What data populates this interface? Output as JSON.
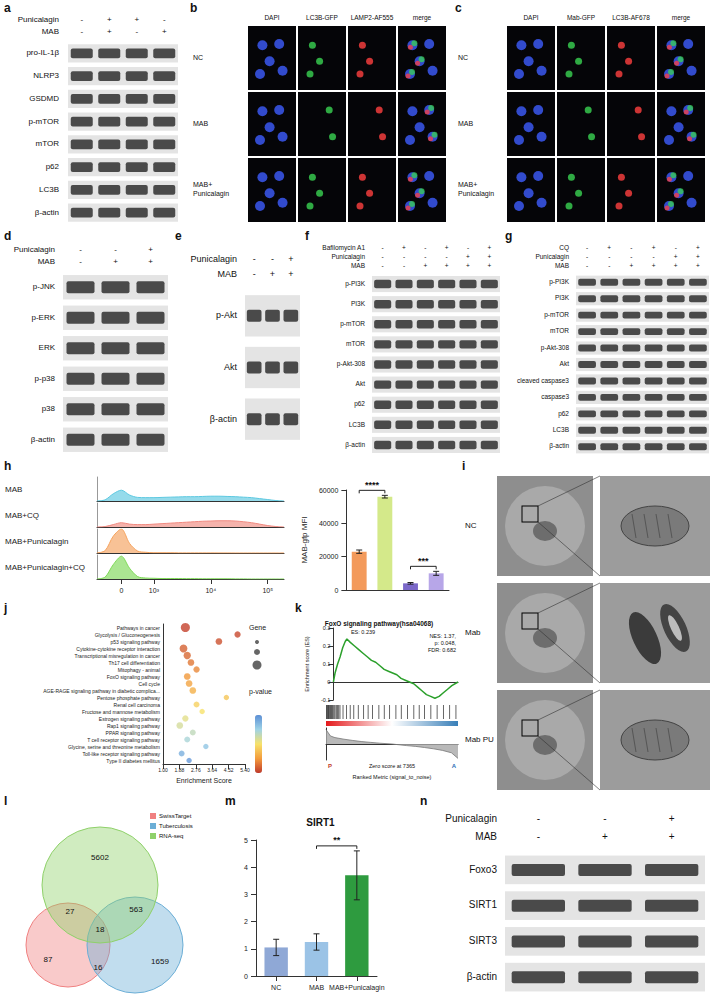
{
  "blots": {
    "a": {
      "treatments": [
        {
          "name": "Punicalagin",
          "signs": [
            "-",
            "+",
            "+",
            "-"
          ]
        },
        {
          "name": "MAB",
          "signs": [
            "-",
            "+",
            "-",
            "+"
          ]
        }
      ],
      "bands": [
        "pro-IL-1β",
        "NLRP3",
        "GSDMD",
        "p-mTOR",
        "mTOR",
        "p62",
        "LC3B",
        "β-actin"
      ]
    },
    "d": {
      "treatments": [
        {
          "name": "Punicalagin",
          "signs": [
            "-",
            "-",
            "+"
          ]
        },
        {
          "name": "MAB",
          "signs": [
            "-",
            "+",
            "+"
          ]
        }
      ],
      "bands": [
        "p-JNK",
        "p-ERK",
        "ERK",
        "p-p38",
        "p38",
        "β-actin"
      ]
    },
    "e": {
      "treatments": [
        {
          "name": "Punicalagin",
          "signs": [
            "-",
            "-",
            "+"
          ]
        },
        {
          "name": "MAB",
          "signs": [
            "-",
            "+",
            "+"
          ]
        }
      ],
      "bands": [
        "p-Akt",
        "Akt",
        "β-actin"
      ]
    },
    "f": {
      "treatments": [
        {
          "name": "Bafilomycin A1",
          "signs": [
            "-",
            "+",
            "-",
            "+",
            "-",
            "+"
          ]
        },
        {
          "name": "Punicalagin",
          "signs": [
            "-",
            "-",
            "-",
            "-",
            "+",
            "+"
          ]
        },
        {
          "name": "MAB",
          "signs": [
            "-",
            "-",
            "+",
            "+",
            "+",
            "+"
          ]
        }
      ],
      "bands": [
        "p-PI3K",
        "PI3K",
        "p-mTOR",
        "mTOR",
        "p-Akt-308",
        "Akt",
        "p62",
        "LC3B",
        "β-actin"
      ]
    },
    "g": {
      "treatments": [
        {
          "name": "CQ",
          "signs": [
            "-",
            "+",
            "-",
            "+",
            "-",
            "+"
          ]
        },
        {
          "name": "Punicalagin",
          "signs": [
            "-",
            "-",
            "-",
            "-",
            "+",
            "+"
          ]
        },
        {
          "name": "MAB",
          "signs": [
            "-",
            "-",
            "+",
            "+",
            "+",
            "+"
          ]
        }
      ],
      "bands": [
        "p-PI3K",
        "PI3K",
        "p-mTOR",
        "mTOR",
        "p-Akt-308",
        "Akt",
        "cleaved caspase3",
        "caspase3",
        "p62",
        "LC3B",
        "β-actin"
      ]
    },
    "n": {
      "treatments": [
        {
          "name": "Punicalagin",
          "signs": [
            "-",
            "-",
            "+"
          ]
        },
        {
          "name": "MAB",
          "signs": [
            "-",
            "+",
            "+"
          ]
        }
      ],
      "bands": [
        "Foxo3",
        "SIRT1",
        "SIRT3",
        "β-actin"
      ]
    }
  },
  "micrographs": {
    "b": {
      "columns": [
        "DAPI",
        "LC3B-GFP",
        "LAMP2-AF555",
        "merge"
      ],
      "rows": [
        "NC",
        "MAB",
        "MAB+Punicalagin"
      ]
    },
    "c": {
      "columns": [
        "DAPI",
        "Mab-GFP",
        "LC3B-AF678",
        "merge"
      ],
      "rows": [
        "NC",
        "MAB",
        "MAB+Punicalagin"
      ]
    },
    "i": {
      "rows": [
        "NC",
        "Mab",
        "Mab PU"
      ]
    }
  },
  "venn": {
    "l": {
      "sets": [
        {
          "name": "SwissTarget",
          "color": "#f08080"
        },
        {
          "name": "Tuberculosis",
          "color": "#6baed6"
        },
        {
          "name": "RNA-seq",
          "color": "#8fd16a"
        }
      ],
      "regions": [
        {
          "sets": [
            "SwissTarget"
          ],
          "value": 87
        },
        {
          "sets": [
            "Tuberculosis"
          ],
          "value": 1659
        },
        {
          "sets": [
            "RNA-seq"
          ],
          "value": 5602
        },
        {
          "sets": [
            "SwissTarget",
            "RNA-seq"
          ],
          "value": 27
        },
        {
          "sets": [
            "RNA-seq",
            "Tuberculosis"
          ],
          "value": 563
        },
        {
          "sets": [
            "SwissTarget",
            "Tuberculosis"
          ],
          "value": 16
        },
        {
          "sets": [
            "SwissTarget",
            "RNA-seq",
            "Tuberculosis"
          ],
          "value": 18
        }
      ]
    }
  },
  "chart_data": [
    {
      "panel": "h",
      "type": "area",
      "categories": [
        null,
        null,
        null,
        "0",
        null,
        null,
        null,
        "10³",
        null,
        null,
        null,
        null,
        null,
        null,
        "10⁴",
        null,
        null,
        null,
        null,
        null,
        null,
        "10⁵",
        null,
        null
      ],
      "series": [
        {
          "name": "MAB",
          "color": "#5cc8e0",
          "values": [
            0,
            5,
            30,
            45,
            25,
            15,
            14,
            14,
            15,
            16,
            17,
            18,
            18,
            19,
            20,
            20,
            19,
            18,
            16,
            14,
            10,
            6,
            2,
            0
          ]
        },
        {
          "name": "MAB+CQ",
          "color": "#f08a80",
          "values": [
            0,
            2,
            10,
            18,
            12,
            10,
            10,
            12,
            14,
            16,
            18,
            20,
            22,
            24,
            25,
            26,
            26,
            25,
            22,
            18,
            12,
            6,
            2,
            0
          ]
        },
        {
          "name": "MAB+Punicalagin",
          "color": "#f5a25d",
          "values": [
            0,
            10,
            70,
            100,
            40,
            8,
            3,
            1,
            1,
            1,
            0.5,
            0.5,
            0.5,
            0.5,
            0.5,
            0.3,
            0.2,
            0,
            0,
            0,
            0,
            0,
            0,
            0
          ]
        },
        {
          "name": "MAB+Punicalagin+CQ",
          "color": "#7ed957",
          "values": [
            0,
            8,
            60,
            95,
            45,
            10,
            4,
            3,
            2,
            2,
            2,
            1.5,
            1.5,
            1,
            1,
            1,
            1,
            0.5,
            0.5,
            0,
            0,
            0,
            0,
            0
          ]
        }
      ],
      "ylim": [
        0,
        100
      ],
      "tick_labels": "x"
    },
    {
      "panel": "h",
      "type": "bar",
      "y_label": "MAB-gfp MFI",
      "values": [
        23000,
        56000,
        4000,
        10000
      ],
      "errors": [
        1000,
        800,
        500,
        1200
      ],
      "colors": [
        "#f39a5b",
        "#d4e98a",
        "#7b68c9",
        "#b7a6e8"
      ],
      "ylim": [
        0,
        60000
      ],
      "yticks": [
        0,
        20000,
        40000,
        60000
      ],
      "tick_labels": "y",
      "annotations": [
        {
          "text": "****",
          "from": 0,
          "to": 1
        },
        {
          "text": "***",
          "from": 2,
          "to": 3
        }
      ]
    },
    {
      "panel": "j",
      "type": "scatter",
      "x_label": "Enrichment Score",
      "categories": [
        "Pathways in cancer",
        "Glycolysis / Gluconeogenesis",
        "p53 signaling pathway",
        "Cytokine-cytokine receptor interaction",
        "Transcriptional misregulation in cancer",
        "Th17 cell differentiation",
        "Mitophagy - animal",
        "FoxO signaling pathway",
        "Cell cycle",
        "AGE-RAGE signaling pathway in diabetic complica...",
        "Pentose phosphate pathway",
        "Renal cell carcinoma",
        "Fructose and mannose metabolism",
        "Estrogen signaling pathway",
        "Rap1 signaling pathway",
        "PPAR signaling pathway",
        "T cell receptor signaling pathway",
        "Glycine, serine and threonine metabolism",
        "Toll-like receptor signaling pathway",
        "Type II diabetes mellitus"
      ],
      "values": [
        2.2,
        5.0,
        4.0,
        2.1,
        2.3,
        2.5,
        2.8,
        2.3,
        2.4,
        2.6,
        4.4,
        2.8,
        3.1,
        2.2,
        1.9,
        2.6,
        2.3,
        3.3,
        2.0,
        2.4
      ],
      "gene": [
        30,
        10,
        12,
        20,
        16,
        12,
        10,
        12,
        12,
        12,
        6,
        8,
        6,
        10,
        12,
        8,
        8,
        6,
        8,
        6
      ],
      "p_value": [
        0.001,
        0.002,
        0.003,
        0.005,
        0.006,
        0.008,
        0.01,
        0.012,
        0.014,
        0.016,
        0.02,
        0.022,
        0.025,
        0.028,
        0.03,
        0.033,
        0.036,
        0.04,
        0.044,
        0.048
      ],
      "p_value_range": [
        0,
        0.05
      ],
      "size_legend_title": "Gene",
      "color_legend_title": "p-value",
      "xlim": [
        1,
        5.4
      ],
      "xticks": [
        {
          "value": 1,
          "label": "1.00"
        },
        {
          "value": 1.88,
          "label": "1.88"
        },
        {
          "value": 2.76,
          "label": "2.76"
        },
        {
          "value": 3.64,
          "label": "3.64"
        },
        {
          "value": 4.52,
          "label": "4.52"
        },
        {
          "value": 5.4,
          "label": "5.40"
        }
      ],
      "grid": false
    },
    {
      "panel": "k",
      "type": "line",
      "title": "FoxO signaling pathway(hsa04068)",
      "y_label": "Enrichment score (ES)",
      "color": "#2ca02c",
      "x": [
        0,
        200,
        500,
        800,
        1100,
        1400,
        1600,
        2000,
        2500,
        3000,
        3500,
        4000,
        4500,
        5000,
        5500,
        6000,
        6500,
        7000,
        7500,
        8000,
        8500,
        9000,
        9500,
        10000,
        10500,
        11000,
        11500,
        12000,
        12500,
        13000,
        13500,
        14000,
        14730
      ],
      "values": [
        0,
        0.05,
        0.1,
        0.14,
        0.19,
        0.225,
        0.239,
        0.22,
        0.2,
        0.18,
        0.16,
        0.14,
        0.12,
        0.11,
        0.09,
        0.07,
        0.06,
        0.05,
        0.04,
        0.02,
        0.01,
        0,
        -0.01,
        -0.03,
        -0.05,
        -0.07,
        -0.08,
        -0.09,
        -0.08,
        -0.06,
        -0.04,
        -0.02,
        0
      ],
      "xlim": [
        0,
        14730
      ],
      "ylim": [
        -0.1,
        0.3
      ],
      "yticks": [
        -0.1,
        0,
        0.1,
        0.2,
        0.3
      ],
      "tick_labels": "y",
      "annotations": [
        "ES: 0.239",
        "NES: 1.37, p: 0.048, FDR: 0.682",
        "Zero score at 7365"
      ],
      "hits": [
        50,
        120,
        200,
        260,
        330,
        420,
        500,
        610,
        700,
        790,
        900,
        1010,
        1150,
        1300,
        1420,
        1560,
        1900,
        2300,
        2700,
        3100,
        3600,
        4200,
        4700,
        5200,
        5900,
        6500,
        7100,
        7800,
        8400,
        9100,
        9800,
        10400,
        11000,
        11700,
        12400,
        13100,
        13800,
        14500
      ],
      "phenotype_labels": [
        "P",
        "A"
      ],
      "metric": {
        "label": "Ranked Metric (signal_to_noise)",
        "x": [
          0,
          500,
          1000,
          2000,
          3000,
          4000,
          5000,
          6000,
          7365,
          8000,
          9000,
          10000,
          11000,
          12000,
          13000,
          14000,
          14730
        ],
        "values": [
          0.9,
          0.5,
          0.4,
          0.3,
          0.22,
          0.15,
          0.1,
          0.05,
          0,
          -0.04,
          -0.1,
          -0.15,
          -0.22,
          -0.3,
          -0.4,
          -0.55,
          -0.9
        ],
        "ylim": [
          -1,
          1
        ]
      }
    },
    {
      "panel": "m",
      "type": "bar",
      "title": "SIRT1",
      "categories": [
        "NC",
        "MAB",
        "MAB+Punicalagin"
      ],
      "values": [
        1.05,
        1.25,
        3.7
      ],
      "errors": [
        0.3,
        0.3,
        0.9
      ],
      "colors": [
        "#8fa8d6",
        "#9bc3e6",
        "#2e9b3f"
      ],
      "ylim": [
        0,
        5
      ],
      "yticks": [
        0,
        1,
        2,
        3,
        4,
        5
      ],
      "annotations": [
        {
          "text": "**",
          "from": 1,
          "to": 2
        }
      ]
    }
  ]
}
